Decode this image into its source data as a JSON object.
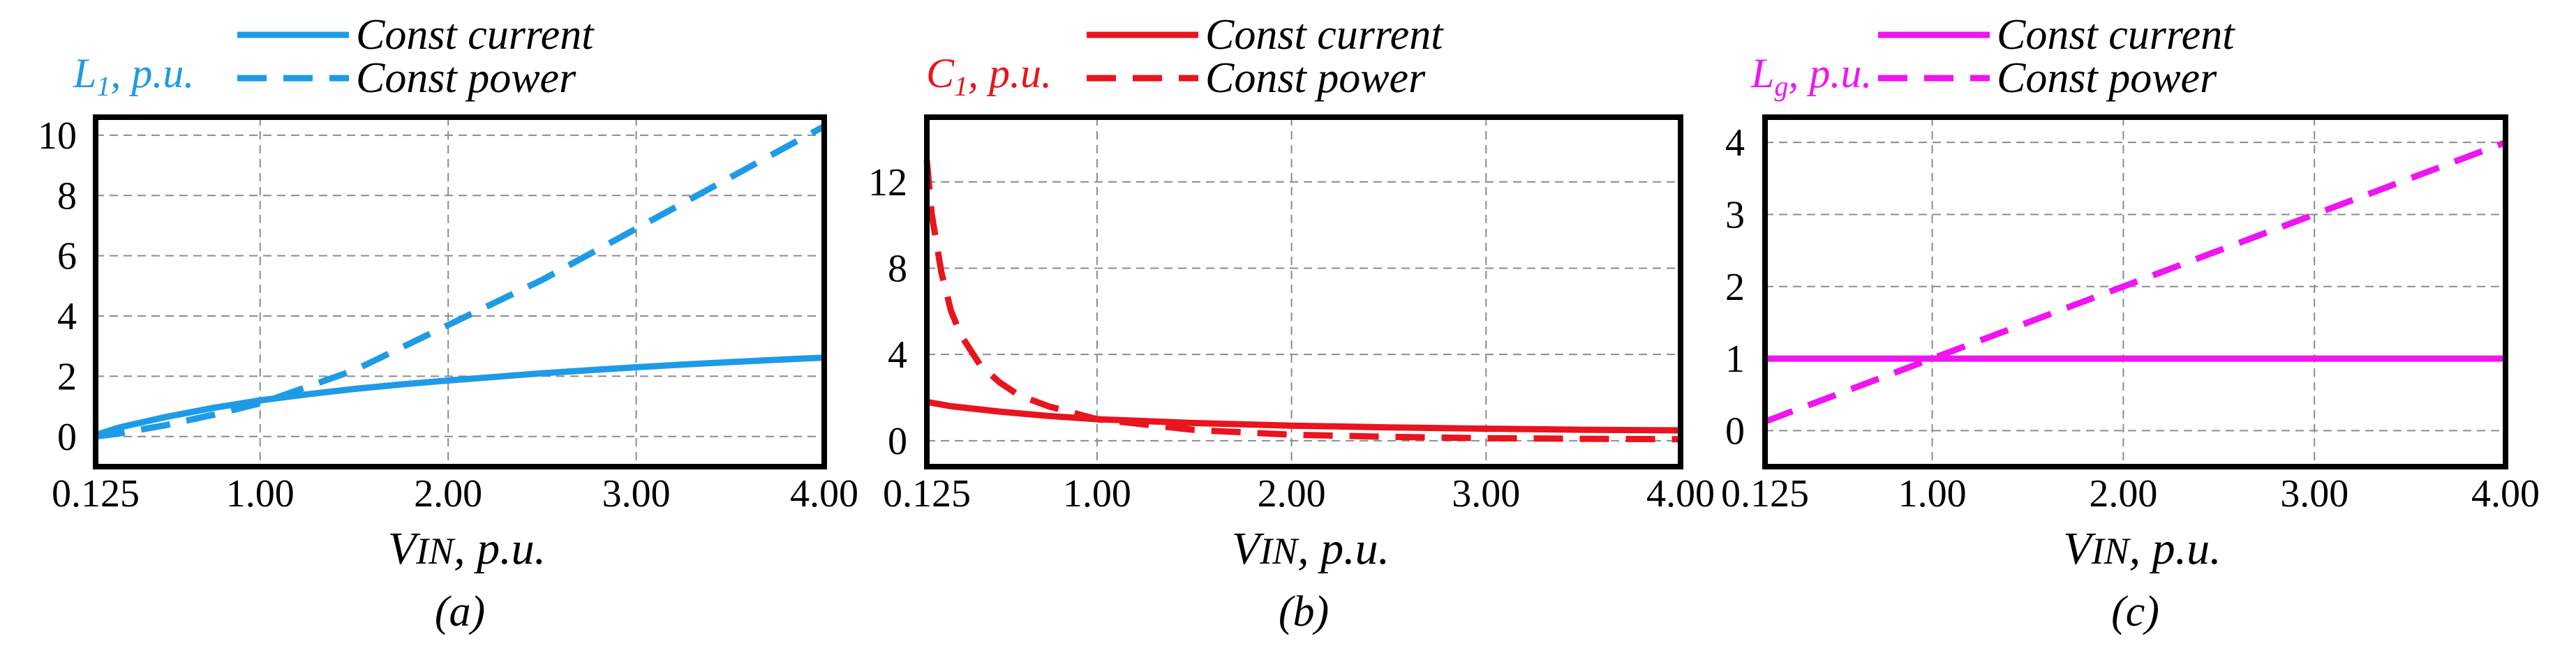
{
  "chart_data": [
    {
      "type": "line",
      "panel": "a",
      "caption": "(a)",
      "ylabel_main": "L",
      "ylabel_sub": "1",
      "ylabel_rest": ", p.u.",
      "xlabel_main": "V",
      "xlabel_sub": "IN",
      "xlabel_rest": ", p.u.",
      "color": "#1e9be6",
      "xlim": [
        0.125,
        4.0
      ],
      "ylim": [
        -1.0,
        10.6
      ],
      "x_ticks": [
        0.125,
        1.0,
        2.0,
        3.0,
        4.0
      ],
      "x_tick_labels": [
        "0.125",
        "1.00",
        "2.00",
        "3.00",
        "4.00"
      ],
      "y_ticks": [
        0,
        2,
        4,
        6,
        8,
        10
      ],
      "y_tick_labels": [
        "0",
        "2",
        "4",
        "6",
        "8",
        "10"
      ],
      "grid": true,
      "series": [
        {
          "name": "Const current",
          "style": "solid",
          "x": [
            0.125,
            0.25,
            0.5,
            0.75,
            1.0,
            1.25,
            1.5,
            1.75,
            2.0,
            2.25,
            2.5,
            2.75,
            3.0,
            3.25,
            3.5,
            3.75,
            4.0
          ],
          "y": [
            0.05,
            0.3,
            0.65,
            0.95,
            1.2,
            1.4,
            1.58,
            1.73,
            1.86,
            1.98,
            2.1,
            2.2,
            2.3,
            2.39,
            2.47,
            2.55,
            2.62
          ]
        },
        {
          "name": "Const power",
          "style": "dashed",
          "x": [
            0.125,
            0.25,
            0.5,
            0.75,
            1.0,
            1.5,
            2.0,
            2.5,
            3.0,
            3.5,
            4.0
          ],
          "y": [
            0.0,
            0.1,
            0.38,
            0.72,
            1.1,
            2.2,
            3.7,
            5.2,
            6.9,
            8.6,
            10.3
          ]
        }
      ]
    },
    {
      "type": "line",
      "panel": "b",
      "caption": "(b)",
      "ylabel_main": "C",
      "ylabel_sub": "1",
      "ylabel_rest": ", p.u.",
      "xlabel_main": "V",
      "xlabel_sub": "IN",
      "xlabel_rest": ", p.u.",
      "color": "#e8141e",
      "xlim": [
        0.125,
        4.0
      ],
      "ylim": [
        -1.2,
        15.0
      ],
      "x_ticks": [
        0.125,
        1.0,
        2.0,
        3.0,
        4.0
      ],
      "x_tick_labels": [
        "0.125",
        "1.00",
        "2.00",
        "3.00",
        "4.00"
      ],
      "y_ticks": [
        0,
        4,
        8,
        12
      ],
      "y_tick_labels": [
        "0",
        "4",
        "8",
        "12"
      ],
      "grid": true,
      "series": [
        {
          "name": "Const current",
          "style": "solid",
          "x": [
            0.125,
            0.25,
            0.5,
            0.75,
            1.0,
            1.5,
            2.0,
            2.5,
            3.0,
            3.5,
            4.0
          ],
          "y": [
            1.8,
            1.6,
            1.35,
            1.15,
            1.0,
            0.82,
            0.7,
            0.62,
            0.56,
            0.51,
            0.48
          ]
        },
        {
          "name": "Const power",
          "style": "dashed",
          "x": [
            0.125,
            0.15,
            0.2,
            0.25,
            0.3,
            0.4,
            0.5,
            0.6,
            0.75,
            1.0,
            1.5,
            2.0,
            2.5,
            3.0,
            3.5,
            4.0
          ],
          "y": [
            13.0,
            10.5,
            7.8,
            6.0,
            4.9,
            3.5,
            2.7,
            2.1,
            1.6,
            1.0,
            0.5,
            0.28,
            0.18,
            0.12,
            0.09,
            0.07
          ]
        }
      ]
    },
    {
      "type": "line",
      "panel": "c",
      "caption": "(c)",
      "ylabel_main": "L",
      "ylabel_sub": "g",
      "ylabel_rest": ", p.u.",
      "xlabel_main": "V",
      "xlabel_sub": "IN",
      "xlabel_rest": ", p.u.",
      "color": "#f014f0",
      "xlim": [
        0.125,
        4.0
      ],
      "ylim": [
        -0.5,
        4.35
      ],
      "x_ticks": [
        0.125,
        1.0,
        2.0,
        3.0,
        4.0
      ],
      "x_tick_labels": [
        "0.125",
        "1.00",
        "2.00",
        "3.00",
        "4.00"
      ],
      "y_ticks": [
        0,
        1,
        2,
        3,
        4
      ],
      "y_tick_labels": [
        "0",
        "1",
        "2",
        "3",
        "4"
      ],
      "grid": true,
      "series": [
        {
          "name": "Const current",
          "style": "solid",
          "x": [
            0.125,
            4.0
          ],
          "y": [
            1.0,
            1.0
          ]
        },
        {
          "name": "Const power",
          "style": "dashed",
          "x": [
            0.125,
            4.0
          ],
          "y": [
            0.125,
            4.0
          ]
        }
      ]
    }
  ]
}
